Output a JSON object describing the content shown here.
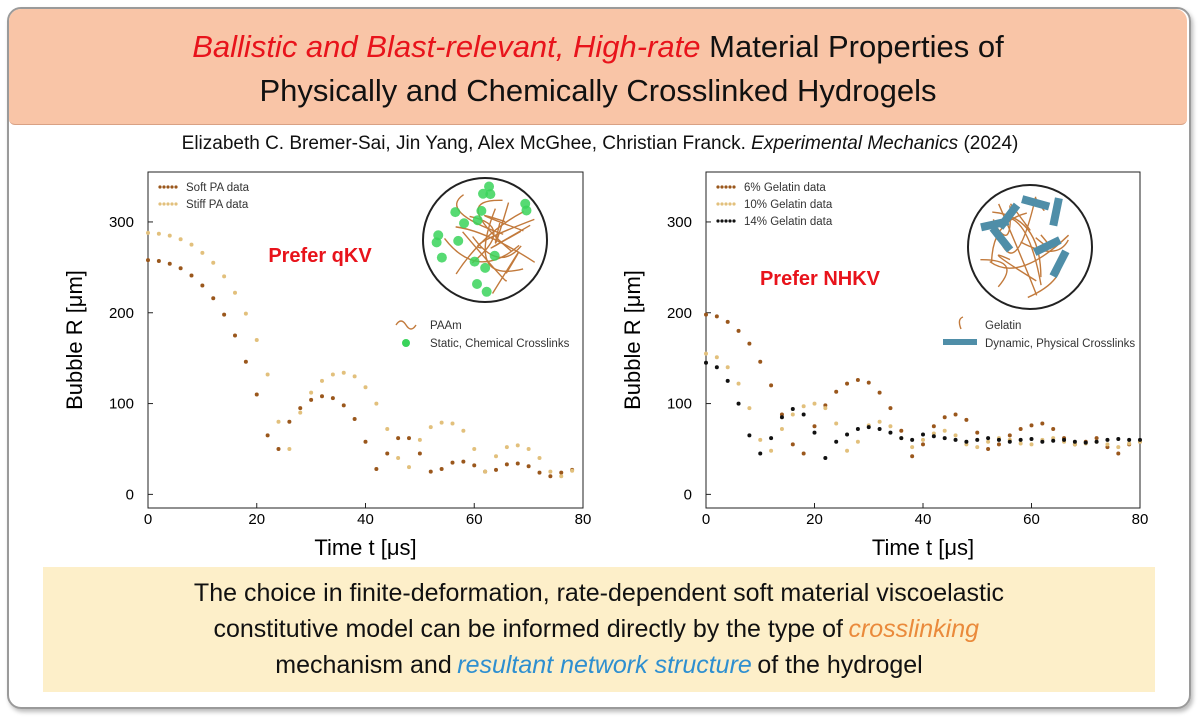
{
  "header": {
    "title_highlight": "Ballistic and Blast-relevant, High-rate",
    "title_rest": "Material Properties of",
    "title_line2": "Physically and Chemically Crosslinked Hydrogels"
  },
  "citation": {
    "authors": "Elizabeth C. Bremer-Sai, Jin Yang, Alex McGhee, Christian Franck.",
    "journal": "Experimental Mechanics",
    "year": "(2024)"
  },
  "chart_data": [
    {
      "type": "scatter",
      "annotation": "Prefer qKV",
      "xlabel": "Time t [μs]",
      "ylabel": "Bubble R [μm]",
      "legend_position": "upper left",
      "inset_legend": [
        "PAAm",
        "Static, Chemical Crosslinks"
      ],
      "xlim": [
        0,
        80
      ],
      "ylim": [
        -15,
        355
      ],
      "xticks": [
        0,
        20,
        40,
        60,
        80
      ],
      "yticks": [
        0,
        100,
        200,
        300
      ],
      "x": [
        0,
        2,
        4,
        6,
        8,
        10,
        12,
        14,
        16,
        18,
        20,
        22,
        24,
        26,
        28,
        30,
        32,
        34,
        36,
        38,
        40,
        42,
        44,
        46,
        48,
        50,
        52,
        54,
        56,
        58,
        60,
        62,
        64,
        66,
        68,
        70,
        72,
        74,
        76,
        78
      ],
      "series": [
        {
          "name": "Soft PA data",
          "color": "#9a571c",
          "values": [
            258,
            257,
            254,
            249,
            241,
            230,
            216,
            198,
            175,
            146,
            110,
            65,
            50,
            80,
            95,
            104,
            108,
            106,
            98,
            83,
            58,
            28,
            45,
            62,
            62,
            45,
            25,
            28,
            35,
            36,
            32,
            25,
            27,
            33,
            34,
            31,
            24,
            20,
            24,
            27
          ]
        },
        {
          "name": "Stiff PA data",
          "color": "#e2c07c",
          "values": [
            288,
            287,
            285,
            281,
            275,
            266,
            255,
            240,
            222,
            199,
            170,
            132,
            80,
            50,
            90,
            112,
            125,
            132,
            134,
            130,
            118,
            100,
            72,
            40,
            30,
            60,
            74,
            79,
            78,
            70,
            50,
            25,
            42,
            52,
            54,
            50,
            40,
            25,
            20,
            26
          ]
        }
      ]
    },
    {
      "type": "scatter",
      "annotation": "Prefer NHKV",
      "xlabel": "Time t [μs]",
      "ylabel": "Bubble R [μm]",
      "legend_position": "upper left",
      "inset_legend": [
        "Gelatin",
        "Dynamic, Physical Crosslinks"
      ],
      "xlim": [
        0,
        80
      ],
      "ylim": [
        -15,
        355
      ],
      "xticks": [
        0,
        20,
        40,
        60,
        80
      ],
      "yticks": [
        0,
        100,
        200,
        300
      ],
      "x": [
        0,
        2,
        4,
        6,
        8,
        10,
        12,
        14,
        16,
        18,
        20,
        22,
        24,
        26,
        28,
        30,
        32,
        34,
        36,
        38,
        40,
        42,
        44,
        46,
        48,
        50,
        52,
        54,
        56,
        58,
        60,
        62,
        64,
        66,
        68,
        70,
        72,
        74,
        76,
        78,
        80
      ],
      "series": [
        {
          "name": "6% Gelatin data",
          "color": "#9a571c",
          "values": [
            198,
            196,
            190,
            180,
            166,
            146,
            120,
            88,
            55,
            45,
            75,
            98,
            113,
            122,
            126,
            123,
            112,
            95,
            70,
            42,
            55,
            75,
            85,
            88,
            82,
            68,
            50,
            55,
            65,
            72,
            76,
            78,
            72,
            62,
            55,
            58,
            62,
            52,
            45,
            55,
            58
          ]
        },
        {
          "name": "10% Gelatin data",
          "color": "#e2c07c",
          "values": [
            155,
            151,
            140,
            122,
            95,
            60,
            48,
            72,
            88,
            97,
            100,
            95,
            78,
            48,
            58,
            76,
            80,
            75,
            62,
            52,
            60,
            67,
            70,
            65,
            55,
            52,
            58,
            62,
            60,
            56,
            55,
            60,
            62,
            58,
            55,
            56,
            58,
            55,
            52,
            56,
            58
          ]
        },
        {
          "name": "14% Gelatin data",
          "color": "#111111",
          "values": [
            145,
            140,
            125,
            100,
            65,
            45,
            62,
            85,
            94,
            88,
            68,
            40,
            58,
            66,
            72,
            74,
            72,
            68,
            62,
            60,
            66,
            64,
            62,
            60,
            58,
            60,
            62,
            60,
            58,
            60,
            61,
            58,
            59,
            60,
            58,
            57,
            58,
            60,
            61,
            60,
            60
          ]
        }
      ]
    }
  ],
  "conclusion": {
    "line1": "The choice in finite-deformation, rate-dependent soft material viscoelastic",
    "line2_start": "constitutive model can be informed directly by the type of",
    "line2_emph": "crosslinking",
    "line3_start": "mechanism and",
    "line3_emph": "resultant network structure",
    "line3_end": "of the hydrogel"
  }
}
